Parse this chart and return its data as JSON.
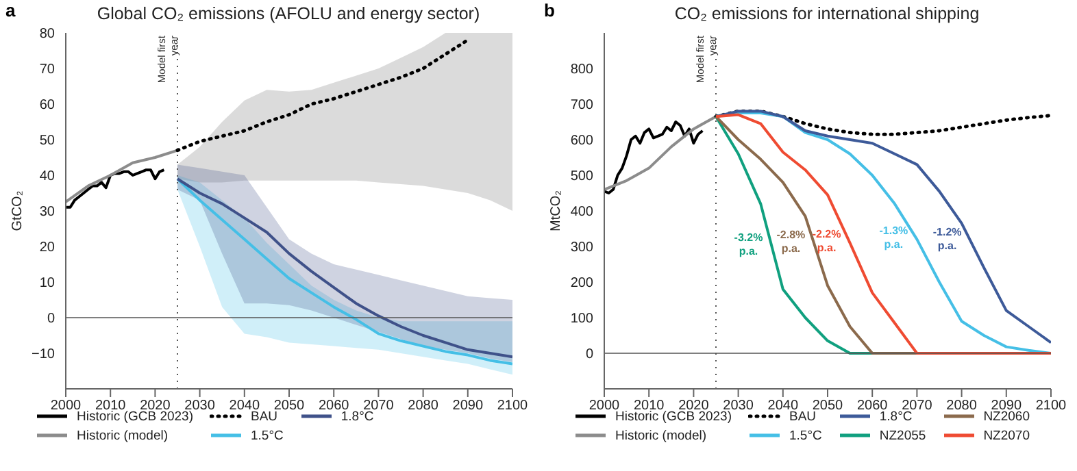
{
  "chart_data": [
    {
      "type": "line",
      "title": "Global CO₂ emissions (AFOLU and energy sector)",
      "ylabel": "GtCO₂",
      "annotations": [
        "a"
      ],
      "xlim": [
        2000,
        2100
      ],
      "xticks": [
        2000,
        2010,
        2020,
        2030,
        2040,
        2050,
        2060,
        2070,
        2080,
        2090,
        2100
      ],
      "ylim": [
        -20,
        80
      ],
      "yticks": [
        -10,
        0,
        10,
        20,
        30,
        40,
        50,
        60,
        70,
        80
      ],
      "grid": false,
      "legend": "bottom",
      "marker": "none",
      "ref_lines": [
        {
          "axis": "x",
          "value": 2025,
          "label": "Model first year",
          "line_style": "dotted",
          "color": "#555555"
        },
        {
          "axis": "y",
          "value": 0,
          "color": "#555555",
          "line_style": "solid"
        }
      ],
      "series": [
        {
          "name": "Historic (GCB 2023)",
          "color": "#000000",
          "x": [
            2000,
            2001,
            2002,
            2003,
            2004,
            2005,
            2006,
            2007,
            2008,
            2009,
            2010,
            2011,
            2012,
            2013,
            2014,
            2015,
            2016,
            2017,
            2018,
            2019,
            2020,
            2021,
            2022
          ],
          "values": [
            31,
            31,
            33,
            34,
            35,
            36,
            37,
            37,
            38,
            36.5,
            40,
            40.5,
            40.5,
            41,
            41,
            40,
            40.5,
            41,
            41.5,
            41.5,
            39,
            41,
            41.5
          ]
        },
        {
          "name": "Historic (model)",
          "color": "#8c8c8c",
          "x": [
            2000,
            2005,
            2010,
            2015,
            2020,
            2025
          ],
          "values": [
            32.5,
            37,
            40,
            43.5,
            45,
            47
          ]
        },
        {
          "name": "BAU",
          "color": "#000000",
          "line_style": "dotted",
          "x": [
            2025,
            2030,
            2035,
            2040,
            2045,
            2050,
            2055,
            2060,
            2065,
            2070,
            2075,
            2080,
            2085,
            2090,
            2095,
            2100
          ],
          "values": [
            47,
            49.5,
            51,
            52.5,
            55,
            57,
            60,
            61.5,
            63.5,
            65.5,
            67.5,
            70,
            74,
            78,
            null,
            null
          ],
          "lower": [
            39,
            38,
            38,
            38.5,
            38.5,
            38.5,
            38.5,
            38.5,
            38.5,
            38,
            37.5,
            37,
            36,
            35,
            33,
            30
          ],
          "upper": [
            43,
            48,
            55,
            61,
            64,
            63.5,
            64,
            66,
            68,
            70,
            73,
            76,
            80,
            80,
            80,
            80
          ]
        },
        {
          "name": "1.5°C",
          "color": "#45bfe6",
          "x": [
            2025,
            2030,
            2035,
            2040,
            2045,
            2050,
            2055,
            2060,
            2065,
            2070,
            2075,
            2080,
            2085,
            2090,
            2095,
            2100
          ],
          "values": [
            39,
            33,
            27.5,
            22,
            16.5,
            11,
            7,
            3,
            -0.5,
            -4.5,
            -6.5,
            -8,
            -9.5,
            -10.5,
            -12,
            -13
          ],
          "lower": [
            36,
            20,
            3,
            -4.5,
            -5.5,
            -7,
            -7.5,
            -8,
            -8.5,
            -9,
            -10,
            -11,
            -12,
            -13,
            -14.5,
            -16
          ],
          "upper": [
            40,
            38,
            33,
            28,
            21,
            15,
            9,
            5,
            2,
            0,
            -1,
            -1,
            -1,
            -1,
            -1,
            -1
          ]
        },
        {
          "name": "1.8°C",
          "color": "#3f5189",
          "x": [
            2025,
            2030,
            2035,
            2040,
            2045,
            2050,
            2055,
            2060,
            2065,
            2070,
            2075,
            2080,
            2085,
            2090,
            2095,
            2100
          ],
          "values": [
            39,
            35,
            32,
            28,
            24,
            18,
            13,
            8.5,
            4,
            0.5,
            -2.5,
            -5,
            -7,
            -9,
            -10,
            -11
          ],
          "lower": [
            36,
            33,
            18,
            4,
            4,
            3.5,
            2,
            0,
            -2,
            -4,
            -6,
            -8,
            -9,
            -10,
            -11.5,
            -12.5
          ],
          "upper": [
            43,
            42,
            41,
            40,
            31,
            22,
            18,
            15,
            13.5,
            12,
            10.5,
            9,
            7.5,
            6,
            5.5,
            5
          ]
        }
      ]
    },
    {
      "type": "line",
      "title": "CO₂ emissions for international shipping",
      "ylabel": "MtCO₂",
      "xlim": [
        2000,
        2100
      ],
      "xticks": [
        2000,
        2010,
        2020,
        2030,
        2040,
        2050,
        2060,
        2070,
        2080,
        2090,
        2100
      ],
      "ylim": [
        -100,
        900
      ],
      "yticks": [
        0,
        100,
        200,
        300,
        400,
        500,
        600,
        700,
        800
      ],
      "grid": false,
      "legend": "bottom",
      "marker": "none",
      "annotations": [
        "b",
        {
          "text": "-3.2%\np.a.",
          "x": 2037.5,
          "y": 300
        },
        {
          "text": "-2.8%\np.a.",
          "x": 2047,
          "y": 307
        },
        {
          "text": "-2.2%\np.a.",
          "x": 2055,
          "y": 310
        },
        {
          "text": "-1.3%\np.a.",
          "x": 2070,
          "y": 320
        },
        {
          "text": "-1.2%\np.a.",
          "x": 2082,
          "y": 315
        }
      ],
      "ref_lines": [
        {
          "axis": "x",
          "value": 2025,
          "label": "Model first year",
          "line_style": "dotted",
          "color": "#555555"
        },
        {
          "axis": "y",
          "value": 0,
          "color": "#555555",
          "line_style": "solid"
        }
      ],
      "series": [
        {
          "name": "Historic (GCB 2023)",
          "color": "#000000",
          "x": [
            2000,
            2001,
            2002,
            2003,
            2004,
            2005,
            2006,
            2007,
            2008,
            2009,
            2010,
            2011,
            2012,
            2013,
            2014,
            2015,
            2016,
            2017,
            2018,
            2019,
            2020,
            2021,
            2022
          ],
          "values": [
            455,
            450,
            460,
            500,
            520,
            555,
            600,
            610,
            590,
            620,
            630,
            605,
            610,
            615,
            635,
            625,
            650,
            640,
            610,
            630,
            590,
            615,
            625
          ]
        },
        {
          "name": "Historic (model)",
          "color": "#8c8c8c",
          "x": [
            2000,
            2005,
            2010,
            2015,
            2020,
            2025
          ],
          "values": [
            460,
            485,
            520,
            580,
            630,
            665
          ]
        },
        {
          "name": "BAU",
          "color": "#000000",
          "line_style": "dotted",
          "x": [
            2025,
            2030,
            2035,
            2040,
            2045,
            2050,
            2055,
            2060,
            2065,
            2070,
            2075,
            2080,
            2085,
            2090,
            2095,
            2100
          ],
          "values": [
            665,
            680,
            680,
            665,
            645,
            630,
            620,
            615,
            615,
            620,
            625,
            635,
            645,
            655,
            662,
            668
          ]
        },
        {
          "name": "1.5°C",
          "color": "#45bfe6",
          "x": [
            2025,
            2030,
            2035,
            2040,
            2045,
            2050,
            2055,
            2060,
            2065,
            2070,
            2075,
            2080,
            2085,
            2090,
            2095,
            2100
          ],
          "values": [
            665,
            675,
            675,
            665,
            620,
            600,
            560,
            500,
            420,
            320,
            200,
            90,
            50,
            18,
            8,
            0
          ]
        },
        {
          "name": "1.8°C",
          "color": "#3d5a99",
          "x": [
            2025,
            2030,
            2035,
            2040,
            2045,
            2050,
            2055,
            2060,
            2065,
            2070,
            2075,
            2080,
            2085,
            2090,
            2095,
            2100
          ],
          "values": [
            665,
            680,
            680,
            665,
            625,
            610,
            600,
            590,
            560,
            530,
            455,
            365,
            240,
            120,
            75,
            30
          ]
        },
        {
          "name": "NZ2055",
          "color": "#10a07f",
          "x": [
            2025,
            2030,
            2035,
            2040,
            2045,
            2050,
            2055,
            2060
          ],
          "values": [
            665,
            560,
            420,
            180,
            100,
            35,
            0,
            0
          ]
        },
        {
          "name": "NZ2060",
          "color": "#8b6a4c",
          "x": [
            2025,
            2030,
            2035,
            2040,
            2045,
            2050,
            2055,
            2060,
            2065,
            2070
          ],
          "values": [
            665,
            600,
            545,
            480,
            385,
            190,
            75,
            0,
            0,
            0
          ]
        },
        {
          "name": "NZ2070",
          "color": "#ef4b32",
          "x": [
            2025,
            2030,
            2035,
            2040,
            2045,
            2050,
            2055,
            2060,
            2065,
            2070,
            2075,
            2080,
            2085,
            2090,
            2095,
            2100
          ],
          "values": [
            665,
            670,
            645,
            565,
            515,
            445,
            310,
            170,
            85,
            0,
            0,
            0,
            0,
            0,
            0,
            0
          ]
        }
      ]
    }
  ]
}
